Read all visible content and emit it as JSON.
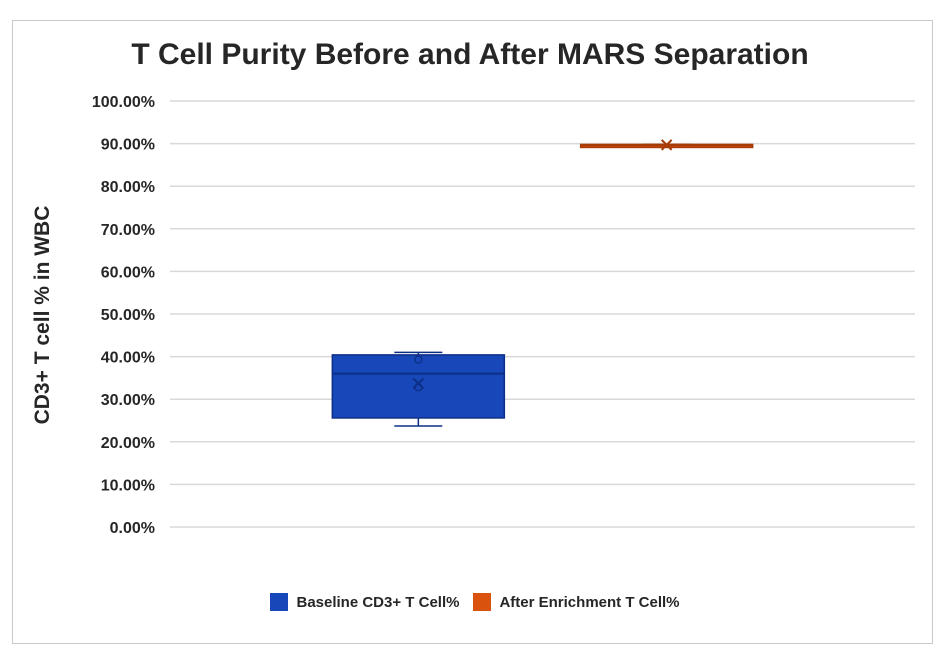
{
  "chart_data": {
    "type": "box",
    "title": "T Cell Purity Before and After MARS Separation",
    "ylabel": "CD3+ T cell % in WBC",
    "xlabel": "",
    "ylim": [
      0,
      100
    ],
    "yticks": [
      0,
      10,
      20,
      30,
      40,
      50,
      60,
      70,
      80,
      90,
      100
    ],
    "ytick_labels": [
      "0.00%",
      "10.00%",
      "20.00%",
      "30.00%",
      "40.00%",
      "50.00%",
      "60.00%",
      "70.00%",
      "80.00%",
      "90.00%",
      "100.00%"
    ],
    "grid": true,
    "legend_position": "bottom",
    "series": [
      {
        "name": "Baseline CD3+ T Cell%",
        "color": "#1747b9",
        "min": 23.7,
        "q1": 25.6,
        "median": 36.0,
        "q3": 40.4,
        "max": 41.0,
        "mean": 33.7,
        "points": [
          32.8,
          39.3
        ]
      },
      {
        "name": "After Enrichment T Cell%",
        "color": "#d9530f",
        "min": 89.3,
        "q1": 89.3,
        "median": 89.6,
        "q3": 89.8,
        "max": 89.8,
        "mean": 89.7,
        "points": []
      }
    ]
  }
}
